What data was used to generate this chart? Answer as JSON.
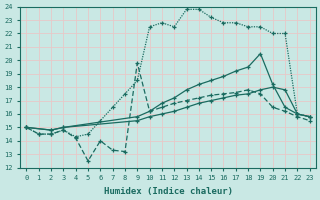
{
  "xlabel": "Humidex (Indice chaleur)",
  "xlim": [
    -0.5,
    23.5
  ],
  "ylim": [
    12,
    24
  ],
  "xticks": [
    0,
    1,
    2,
    3,
    4,
    5,
    6,
    7,
    8,
    9,
    10,
    11,
    12,
    13,
    14,
    15,
    16,
    17,
    18,
    19,
    20,
    21,
    22,
    23
  ],
  "yticks": [
    12,
    13,
    14,
    15,
    16,
    17,
    18,
    19,
    20,
    21,
    22,
    23,
    24
  ],
  "bg_color": "#c9e8e4",
  "grid_color": "#e8c8c8",
  "line_color": "#1a6b60",
  "lines": [
    {
      "x": [
        0,
        1,
        2,
        3,
        4,
        5,
        6,
        7,
        8,
        9,
        10,
        11,
        12,
        13,
        14,
        15,
        16,
        17,
        18,
        19,
        20,
        21,
        22,
        23
      ],
      "y": [
        15.0,
        14.5,
        14.5,
        14.8,
        14.3,
        14.5,
        15.5,
        16.5,
        17.5,
        18.5,
        22.5,
        22.8,
        22.5,
        23.8,
        23.8,
        23.2,
        22.8,
        22.8,
        22.5,
        22.5,
        22.0,
        22.0,
        16.0,
        15.8
      ],
      "marker": "+",
      "linestyle": "dotted"
    },
    {
      "x": [
        0,
        2,
        3,
        9,
        10,
        11,
        12,
        13,
        14,
        15,
        16,
        17,
        18,
        19,
        20,
        21,
        22,
        23
      ],
      "y": [
        15.0,
        14.8,
        15.0,
        15.8,
        16.2,
        16.8,
        17.2,
        17.8,
        18.2,
        18.5,
        18.8,
        19.2,
        19.5,
        20.5,
        18.2,
        16.5,
        16.0,
        15.8
      ],
      "marker": "+",
      "linestyle": "solid"
    },
    {
      "x": [
        0,
        2,
        3,
        9,
        10,
        11,
        12,
        13,
        14,
        15,
        16,
        17,
        18,
        19,
        20,
        21,
        22,
        23
      ],
      "y": [
        15.0,
        14.8,
        15.0,
        15.5,
        15.8,
        16.0,
        16.2,
        16.5,
        16.8,
        17.0,
        17.2,
        17.4,
        17.5,
        17.8,
        18.0,
        17.8,
        16.0,
        15.8
      ],
      "marker": "+",
      "linestyle": "solid"
    },
    {
      "x": [
        0,
        1,
        2,
        3,
        4,
        5,
        6,
        7,
        8,
        9,
        10,
        11,
        12,
        13,
        14,
        15,
        16,
        17,
        18,
        19,
        20,
        21,
        22,
        23
      ],
      "y": [
        15.0,
        14.5,
        14.5,
        14.8,
        14.2,
        12.5,
        14.0,
        13.3,
        13.2,
        19.8,
        16.2,
        16.5,
        16.8,
        17.0,
        17.2,
        17.4,
        17.5,
        17.6,
        17.8,
        17.5,
        16.5,
        16.2,
        15.8,
        15.5
      ],
      "marker": "+",
      "linestyle": "dashed"
    }
  ]
}
